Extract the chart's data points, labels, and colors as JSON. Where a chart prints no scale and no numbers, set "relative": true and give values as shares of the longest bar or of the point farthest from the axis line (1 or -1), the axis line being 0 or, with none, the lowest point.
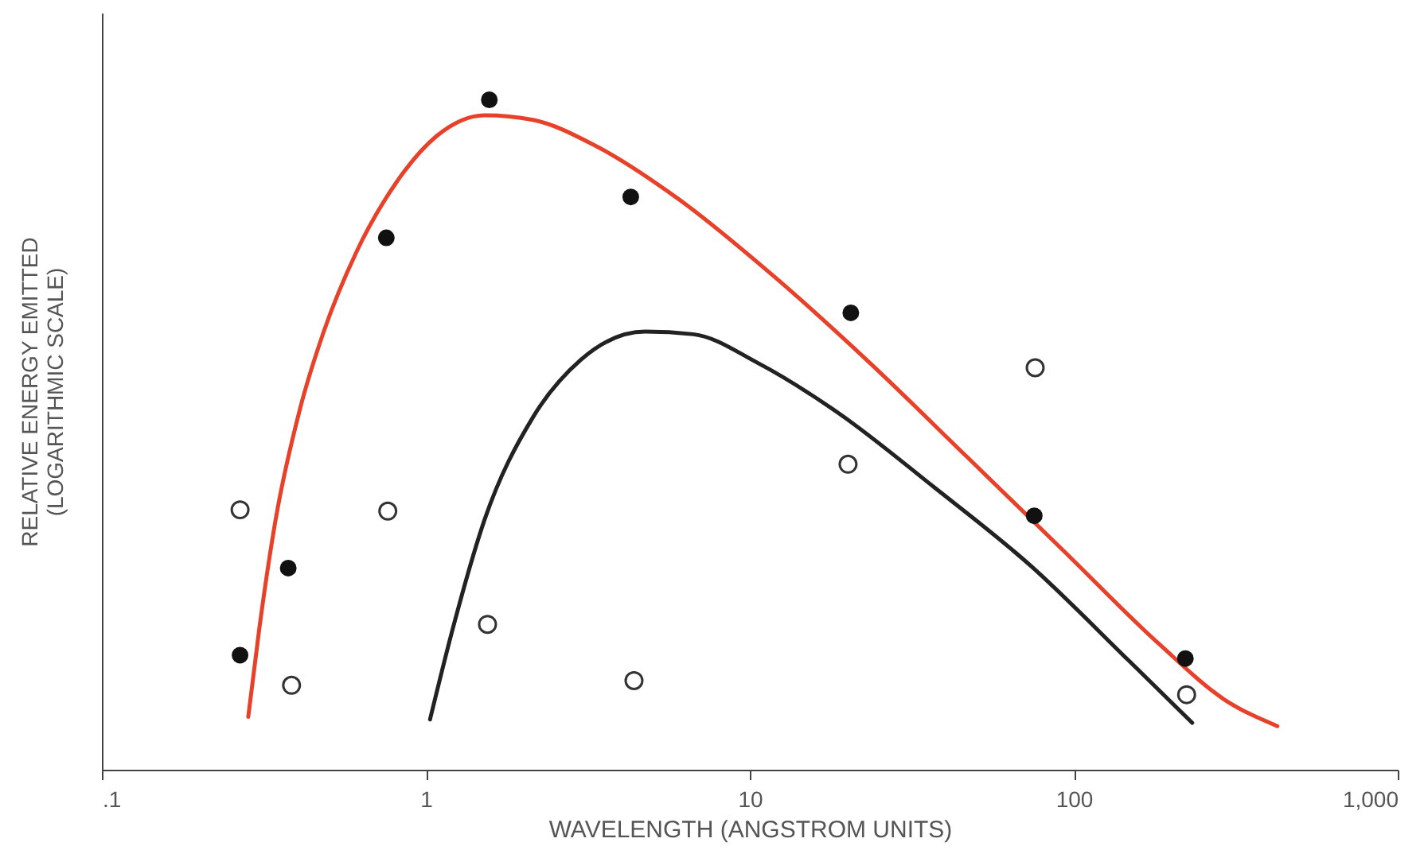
{
  "chart_data": {
    "type": "scatter",
    "relative": true,
    "log": "x",
    "xlabel": "WAVELENGTH (ANGSTROM UNITS)",
    "ylabel": "RELATIVE ENERGY EMITTED\n(LOGARITHMIC SCALE)",
    "xlim": [
      0.1,
      1000
    ],
    "xticks": [
      {
        "value": 0.1,
        "label": ".1"
      },
      1,
      10,
      100,
      {
        "value": 1000,
        "label": "1,000"
      }
    ],
    "grid": false,
    "series": [
      {
        "type": "line",
        "color": "#e8412a",
        "marker": "none",
        "x": [
          0.283,
          0.306,
          0.344,
          0.408,
          0.484,
          0.608,
          0.809,
          1.08,
          1.52,
          2.14,
          3.38,
          5.98,
          11.9,
          23.5,
          46.8,
          92.9,
          184,
          291,
          425
        ],
        "values": [
          0.079,
          0.21,
          0.374,
          0.537,
          0.654,
          0.771,
          0.876,
          0.946,
          0.977,
          0.97,
          0.93,
          0.853,
          0.736,
          0.607,
          0.467,
          0.327,
          0.187,
          0.105,
          0.065
        ]
      },
      {
        "type": "line",
        "color": "#222222",
        "marker": "none",
        "x": [
          1.03,
          1.21,
          1.52,
          2.14,
          3.01,
          4.75,
          6.7,
          10.6,
          18.7,
          37.2,
          73.8,
          147,
          232
        ],
        "values": [
          0.075,
          0.21,
          0.374,
          0.526,
          0.612,
          0.654,
          0.65,
          0.607,
          0.533,
          0.421,
          0.304,
          0.164,
          0.07
        ]
      },
      {
        "color": "#111111",
        "marker": "circle",
        "x": [
          0.267,
          0.376,
          0.755,
          1.57,
          4.29,
          20.5,
          75.5,
          221
        ],
        "values": [
          0.171,
          0.301,
          0.794,
          1,
          0.855,
          0.682,
          0.379,
          0.166
        ]
      },
      {
        "color": "#333333",
        "marker": "circle",
        "x": [
          0.267,
          0.385,
          0.763,
          1.55,
          4.39,
          20.1,
          76.0,
          223
        ],
        "values": [
          0.388,
          0.126,
          0.386,
          0.217,
          0.133,
          0.456,
          0.6,
          0.112
        ]
      }
    ]
  }
}
